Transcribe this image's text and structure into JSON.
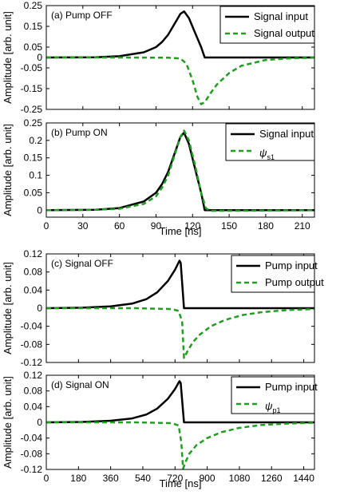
{
  "chart_data": [
    {
      "type": "line",
      "panel_label": "(a) Pump OFF",
      "xlim": [
        0,
        220
      ],
      "ylim": [
        -0.25,
        0.25
      ],
      "yticks": [
        "0.25",
        "0.15",
        "0.05",
        "0",
        "-0.05",
        "-0.15",
        "-0.25"
      ],
      "ytick_values": [
        0.25,
        0.15,
        0.05,
        0,
        -0.05,
        -0.15,
        -0.25
      ],
      "ylabel": "Amplitude [arb. unit]",
      "legend_position": "top-right",
      "series": [
        {
          "name": "Signal input",
          "style": "solid",
          "color": "#000000",
          "x": [
            0,
            40,
            60,
            80,
            90,
            95,
            100,
            105,
            110,
            113,
            117,
            122,
            127,
            130,
            220
          ],
          "y": [
            0,
            0.001,
            0.006,
            0.025,
            0.05,
            0.075,
            0.11,
            0.16,
            0.21,
            0.222,
            0.19,
            0.12,
            0.05,
            0,
            0
          ]
        },
        {
          "name": "Signal output",
          "style": "dashed",
          "color": "#1f9e1f",
          "x": [
            0,
            60,
            100,
            110,
            115,
            120,
            124,
            127,
            130,
            135,
            140,
            150,
            160,
            180,
            200,
            220
          ],
          "y": [
            0,
            0,
            -0.001,
            -0.005,
            -0.03,
            -0.11,
            -0.19,
            -0.225,
            -0.215,
            -0.17,
            -0.13,
            -0.075,
            -0.04,
            -0.012,
            -0.004,
            -0.001
          ]
        }
      ]
    },
    {
      "type": "line",
      "panel_label": "(b) Pump ON",
      "xlim": [
        0,
        220
      ],
      "ylim": [
        -0.02,
        0.25
      ],
      "xticks": [
        "0",
        "30",
        "60",
        "90",
        "120",
        "150",
        "180",
        "210"
      ],
      "xtick_values": [
        0,
        30,
        60,
        90,
        120,
        150,
        180,
        210
      ],
      "yticks": [
        "0.25",
        "0.2",
        "0.15",
        "0.1",
        "0.05",
        "0"
      ],
      "ytick_values": [
        0.25,
        0.2,
        0.15,
        0.1,
        0.05,
        0
      ],
      "xlabel": "Time [ns]",
      "ylabel": "Amplitude [arb. unit]",
      "legend_position": "top-right",
      "series": [
        {
          "name": "Signal input",
          "style": "solid",
          "color": "#000000",
          "x": [
            0,
            40,
            60,
            80,
            90,
            95,
            100,
            105,
            110,
            113,
            117,
            122,
            127,
            130,
            220
          ],
          "y": [
            0,
            0.001,
            0.006,
            0.025,
            0.05,
            0.075,
            0.11,
            0.16,
            0.21,
            0.222,
            0.19,
            0.12,
            0.05,
            0,
            0
          ]
        },
        {
          "name": "ψ",
          "sub": "s1",
          "style": "dashed",
          "color": "#1f9e1f",
          "x": [
            0,
            40,
            60,
            80,
            90,
            95,
            100,
            105,
            110,
            113,
            117,
            122,
            127,
            131,
            135,
            220
          ],
          "y": [
            0,
            0.001,
            0.004,
            0.018,
            0.04,
            0.065,
            0.1,
            0.155,
            0.21,
            0.228,
            0.2,
            0.13,
            0.05,
            0.005,
            -0.002,
            0
          ]
        }
      ]
    },
    {
      "type": "line",
      "panel_label": "(c) Signal OFF",
      "xlim": [
        0,
        1500
      ],
      "ylim": [
        -0.12,
        0.12
      ],
      "yticks": [
        "0.12",
        "0.08",
        "0.04",
        "0",
        "-0.04",
        "-0.08",
        "-0.12"
      ],
      "ytick_values": [
        0.12,
        0.08,
        0.04,
        0,
        -0.04,
        -0.08,
        -0.12
      ],
      "ylabel": "Amplitude [arb. unit]",
      "legend_position": "top-right",
      "series": [
        {
          "name": "Pump input",
          "style": "solid",
          "color": "#000000",
          "x": [
            0,
            200,
            360,
            480,
            560,
            620,
            680,
            720,
            745,
            752,
            770,
            1500
          ],
          "y": [
            0,
            0.001,
            0.004,
            0.01,
            0.02,
            0.035,
            0.06,
            0.085,
            0.105,
            0.1,
            0,
            0
          ]
        },
        {
          "name": "Pump output",
          "style": "dashed",
          "color": "#1f9e1f",
          "x": [
            0,
            500,
            700,
            740,
            760,
            770,
            790,
            820,
            860,
            920,
            1000,
            1100,
            1200,
            1350,
            1500
          ],
          "y": [
            0,
            0,
            -0.002,
            -0.006,
            -0.03,
            -0.11,
            -0.095,
            -0.075,
            -0.058,
            -0.04,
            -0.026,
            -0.015,
            -0.009,
            -0.004,
            -0.002
          ]
        }
      ]
    },
    {
      "type": "line",
      "panel_label": "(d) Signal ON",
      "xlim": [
        0,
        1500
      ],
      "ylim": [
        -0.12,
        0.12
      ],
      "xticks": [
        "0",
        "180",
        "360",
        "540",
        "720",
        "900",
        "1080",
        "1260",
        "1440"
      ],
      "xtick_values": [
        0,
        180,
        360,
        540,
        720,
        900,
        1080,
        1260,
        1440
      ],
      "yticks": [
        "0.12",
        "0.08",
        "0.04",
        "0",
        "-0.04",
        "-0.08",
        "-0.12"
      ],
      "ytick_values": [
        0.12,
        0.08,
        0.04,
        0,
        -0.04,
        -0.08,
        -0.12
      ],
      "xlabel": "Time [ns]",
      "ylabel": "Amplitude [arb. unit]",
      "legend_position": "top-right",
      "series": [
        {
          "name": "Pump input",
          "style": "solid",
          "color": "#000000",
          "x": [
            0,
            200,
            360,
            480,
            560,
            620,
            680,
            720,
            745,
            752,
            770,
            1500
          ],
          "y": [
            0,
            0.001,
            0.004,
            0.01,
            0.02,
            0.035,
            0.06,
            0.085,
            0.105,
            0.1,
            0,
            0
          ]
        },
        {
          "name": "ψ",
          "sub": "p1",
          "style": "dashed",
          "color": "#1f9e1f",
          "x": [
            0,
            500,
            700,
            740,
            755,
            765,
            780,
            800,
            840,
            900,
            980,
            1080,
            1200,
            1350,
            1500
          ],
          "y": [
            0,
            0,
            -0.002,
            -0.008,
            -0.05,
            -0.118,
            -0.1,
            -0.08,
            -0.058,
            -0.04,
            -0.025,
            -0.014,
            -0.007,
            -0.003,
            -0.001
          ]
        }
      ]
    }
  ]
}
